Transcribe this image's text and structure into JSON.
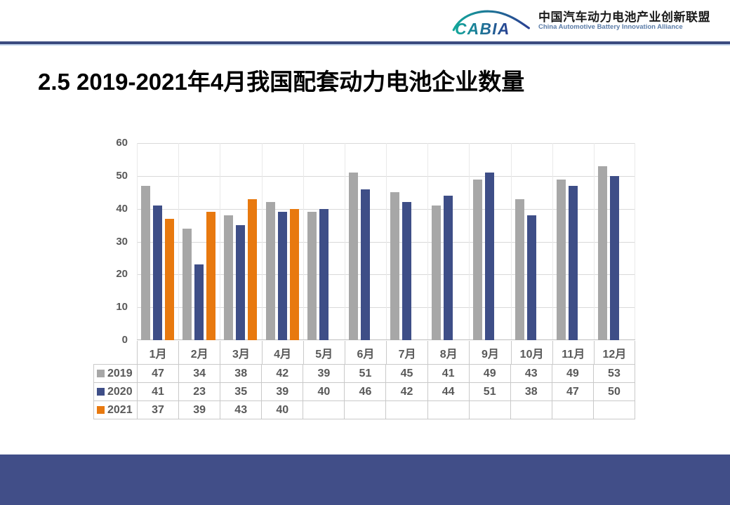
{
  "header": {
    "logo_text": "CABIA",
    "org_name_zh": "中国汽车动力电池产业创新联盟",
    "org_name_en": "China Automotive Battery Innovation Alliance"
  },
  "page_title": "2.5 2019-2021年4月我国配套动力电池企业数量",
  "chart_data": {
    "type": "bar",
    "title": "2.5 2019-2021年4月我国配套动力电池企业数量",
    "categories": [
      "1月",
      "2月",
      "3月",
      "4月",
      "5月",
      "6月",
      "7月",
      "8月",
      "9月",
      "10月",
      "11月",
      "12月"
    ],
    "series": [
      {
        "name": "2019",
        "color": "#a7a7a7",
        "values": [
          47,
          34,
          38,
          42,
          39,
          51,
          45,
          41,
          49,
          43,
          49,
          53
        ]
      },
      {
        "name": "2020",
        "color": "#3e4e87",
        "values": [
          41,
          23,
          35,
          39,
          40,
          46,
          42,
          44,
          51,
          38,
          47,
          50
        ]
      },
      {
        "name": "2021",
        "color": "#e8790f",
        "values": [
          37,
          39,
          43,
          40,
          null,
          null,
          null,
          null,
          null,
          null,
          null,
          null
        ]
      }
    ],
    "ylim": [
      0,
      60
    ],
    "ytick_interval": 10,
    "grid": true,
    "legend_position": "table-rows-left",
    "xlabel": "",
    "ylabel": ""
  },
  "theme": {
    "divider_dark": "#3a4a7f",
    "divider_light": "#c5d7ec",
    "footer": "#414e88",
    "gridline": "#d9d9d9",
    "axis_text": "#595959"
  }
}
